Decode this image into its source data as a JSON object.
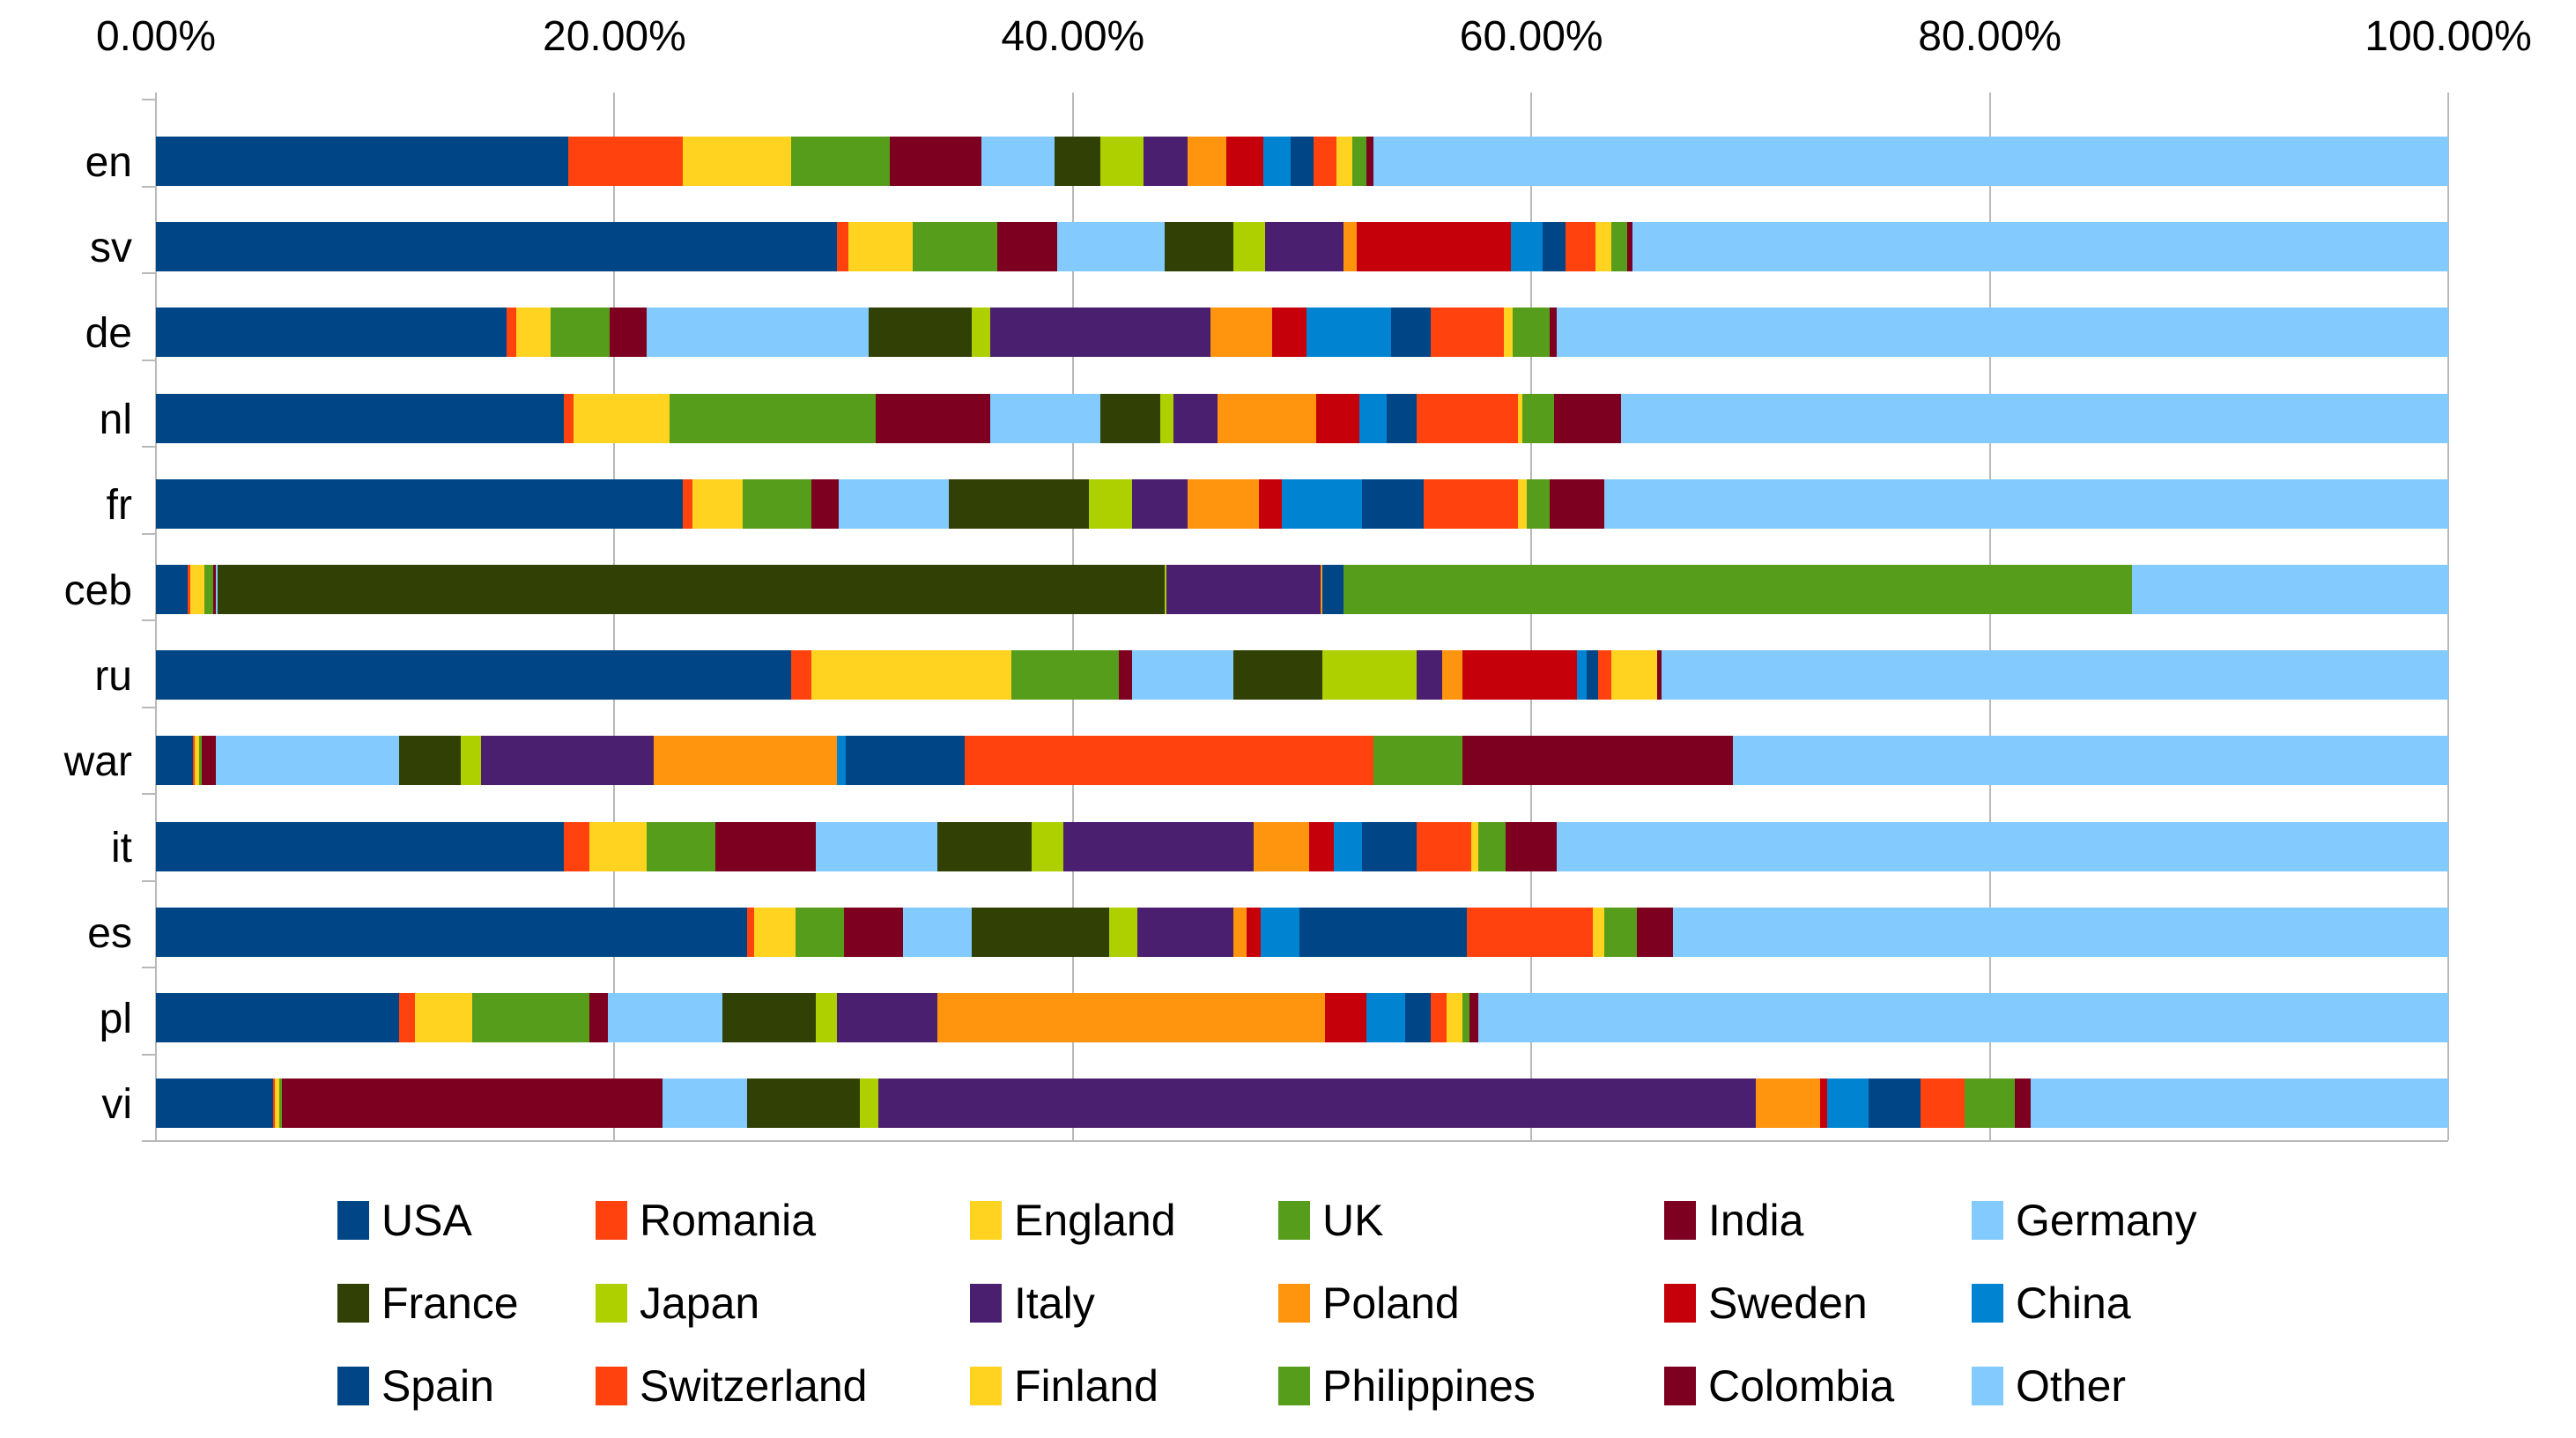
{
  "chart_data": {
    "type": "bar",
    "stacked": true,
    "orientation": "horizontal",
    "title": "",
    "xlabel": "",
    "ylabel": "",
    "x_axis": {
      "min": 0,
      "max": 100,
      "tick_labels": [
        "0.00%",
        "20.00%",
        "40.00%",
        "60.00%",
        "80.00%",
        "100.00%"
      ],
      "tick_values": [
        0,
        20,
        40,
        60,
        80,
        100
      ],
      "grid": true
    },
    "categories": [
      "en",
      "sv",
      "de",
      "nl",
      "fr",
      "ceb",
      "ru",
      "war",
      "it",
      "es",
      "pl",
      "vi"
    ],
    "series": [
      {
        "name": "USA",
        "color": "#004586",
        "values": [
          18.0,
          29.7,
          15.3,
          17.8,
          23.0,
          1.4,
          27.7,
          1.6,
          17.8,
          25.8,
          10.6,
          5.1
        ]
      },
      {
        "name": "Romania",
        "color": "#FF420E",
        "values": [
          5.0,
          0.5,
          0.4,
          0.4,
          0.4,
          0.1,
          0.9,
          0.1,
          1.1,
          0.3,
          0.7,
          0.1
        ]
      },
      {
        "name": "England",
        "color": "#FFD320",
        "values": [
          4.7,
          2.8,
          1.5,
          4.2,
          2.2,
          0.6,
          8.7,
          0.2,
          2.5,
          1.8,
          2.5,
          0.2
        ]
      },
      {
        "name": "UK",
        "color": "#579D1C",
        "values": [
          4.3,
          3.7,
          2.6,
          9.0,
          3.0,
          0.4,
          4.7,
          0.1,
          3.0,
          2.1,
          5.1,
          0.1
        ]
      },
      {
        "name": "India",
        "color": "#7E0021",
        "values": [
          4.0,
          2.6,
          1.6,
          5.0,
          1.2,
          0.1,
          0.6,
          0.6,
          4.4,
          2.6,
          0.8,
          16.6
        ]
      },
      {
        "name": "Germany",
        "color": "#83CAFF",
        "values": [
          3.2,
          4.7,
          9.7,
          4.8,
          4.8,
          0.1,
          4.4,
          8.0,
          5.3,
          3.0,
          5.0,
          3.7
        ]
      },
      {
        "name": "France",
        "color": "#314004",
        "values": [
          2.0,
          3.0,
          4.5,
          2.6,
          6.1,
          41.3,
          3.9,
          2.7,
          4.1,
          6.0,
          4.1,
          4.9
        ]
      },
      {
        "name": "Japan",
        "color": "#AECF00",
        "values": [
          1.9,
          1.4,
          0.8,
          0.6,
          1.9,
          0.1,
          4.1,
          0.9,
          1.4,
          1.2,
          0.9,
          0.8
        ]
      },
      {
        "name": "Italy",
        "color": "#4B1F6F",
        "values": [
          1.9,
          3.4,
          9.6,
          1.9,
          2.4,
          6.7,
          1.1,
          7.5,
          8.3,
          4.2,
          4.4,
          38.3
        ]
      },
      {
        "name": "Poland",
        "color": "#FF950E",
        "values": [
          1.7,
          0.6,
          2.7,
          4.3,
          3.1,
          0.1,
          0.9,
          8.0,
          2.4,
          0.6,
          16.9,
          2.8
        ]
      },
      {
        "name": "Sweden",
        "color": "#C5000B",
        "values": [
          1.6,
          6.7,
          1.5,
          1.9,
          1.0,
          0.0,
          5.0,
          0.0,
          1.1,
          0.6,
          1.8,
          0.3
        ]
      },
      {
        "name": "China",
        "color": "#0084D1",
        "values": [
          1.2,
          1.4,
          3.7,
          1.2,
          3.5,
          0.0,
          0.4,
          0.4,
          1.2,
          1.7,
          1.7,
          1.8
        ]
      },
      {
        "name": "Spain",
        "color": "#004586",
        "values": [
          1.0,
          1.0,
          1.7,
          1.3,
          2.7,
          0.9,
          0.5,
          5.2,
          2.4,
          7.3,
          1.1,
          2.3
        ]
      },
      {
        "name": "Switzerland",
        "color": "#FF420E",
        "values": [
          1.0,
          1.3,
          3.2,
          4.4,
          4.1,
          0.0,
          0.6,
          17.8,
          2.4,
          5.5,
          0.7,
          1.9
        ]
      },
      {
        "name": "Finland",
        "color": "#FFD320",
        "values": [
          0.7,
          0.7,
          0.4,
          0.2,
          0.4,
          0.0,
          2.0,
          0.0,
          0.3,
          0.5,
          0.7,
          0.0
        ]
      },
      {
        "name": "Philippines",
        "color": "#579D1C",
        "values": [
          0.6,
          0.7,
          1.6,
          1.4,
          1.0,
          34.4,
          0.0,
          3.9,
          1.2,
          1.4,
          0.3,
          2.2
        ]
      },
      {
        "name": "Colombia",
        "color": "#7E0021",
        "values": [
          0.3,
          0.2,
          0.3,
          2.9,
          2.4,
          0.0,
          0.2,
          11.8,
          2.2,
          1.6,
          0.4,
          0.7
        ]
      },
      {
        "name": "Other",
        "color": "#83CAFF",
        "values": [
          46.9,
          35.6,
          38.9,
          36.1,
          36.8,
          13.8,
          34.3,
          31.2,
          38.9,
          33.8,
          42.3,
          18.2
        ]
      }
    ],
    "legend": {
      "position": "bottom",
      "rows": [
        [
          "USA",
          "Romania",
          "England",
          "UK",
          "India",
          "Germany"
        ],
        [
          "France",
          "Japan",
          "Italy",
          "Poland",
          "Sweden",
          "China"
        ],
        [
          "Spain",
          "Switzerland",
          "Finland",
          "Philippines",
          "Colombia",
          "Other"
        ]
      ]
    },
    "style": {
      "grid_color": "#b9b9b9",
      "background": "#ffffff",
      "text_color": "#000000"
    }
  }
}
